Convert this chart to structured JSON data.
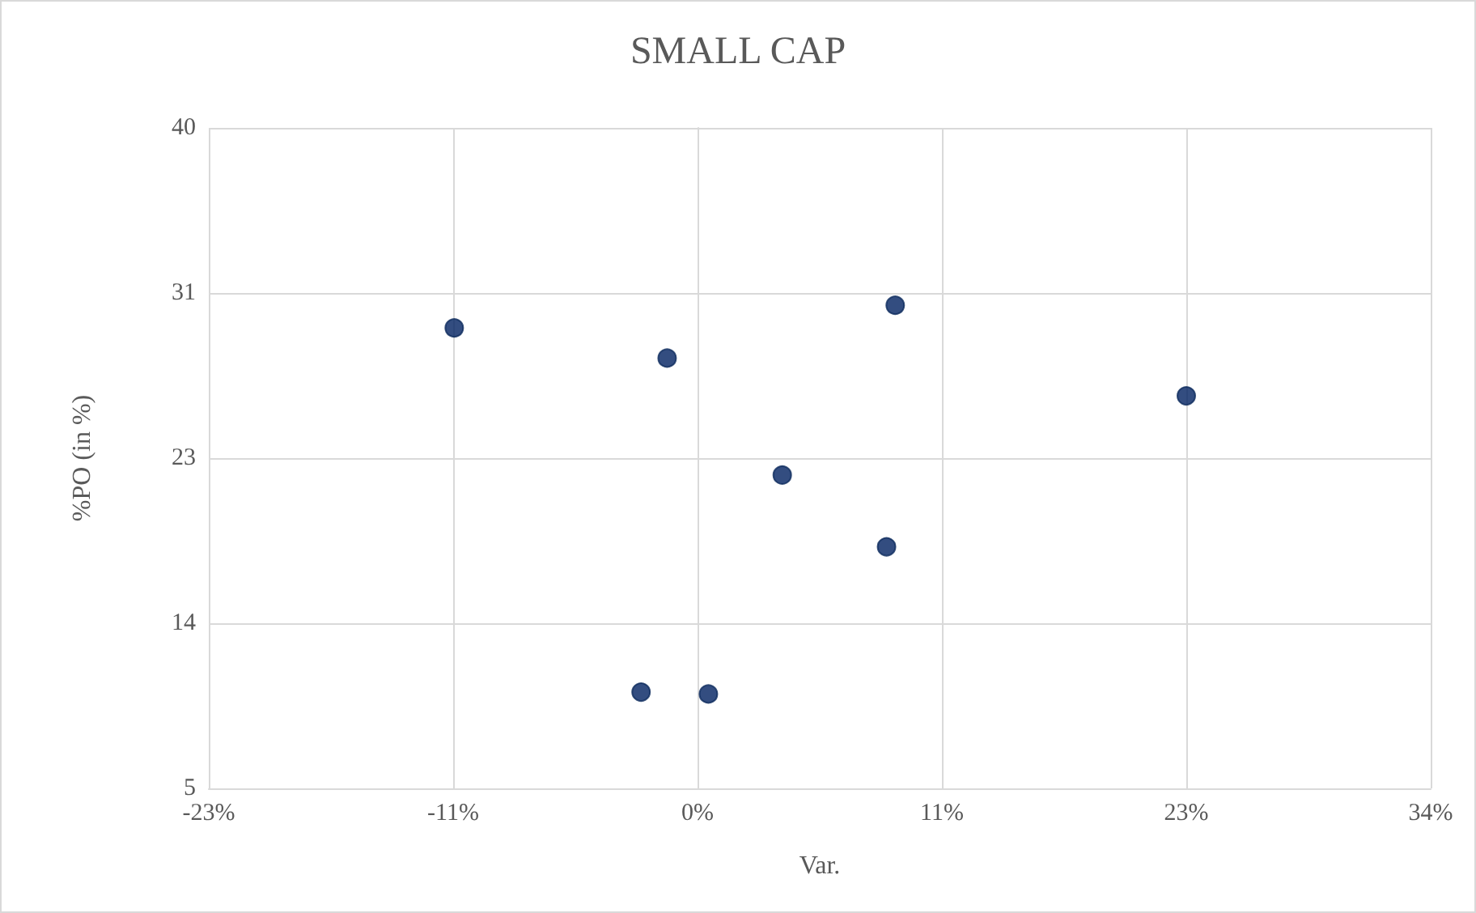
{
  "chart_data": {
    "type": "scatter",
    "title": "SMALL CAP",
    "xlabel": "Var.",
    "ylabel": "%PO (in %)",
    "x": [
      -11.2,
      -1.4,
      9.1,
      22.5,
      3.9,
      8.7,
      -2.6,
      0.5
    ],
    "series": [
      {
        "color": "#002060",
        "values": [
          29.4,
          27.8,
          30.6,
          25.8,
          21.6,
          17.8,
          10.1,
          10.0
        ]
      }
    ],
    "xlim": [
      -22.5,
      33.75
    ],
    "xticks": [
      {
        "value": -22.5,
        "label": "-23%"
      },
      {
        "value": -11.25,
        "label": "-11%"
      },
      {
        "value": 0,
        "label": "0%"
      },
      {
        "value": 11.25,
        "label": "11%"
      },
      {
        "value": 22.5,
        "label": "23%"
      },
      {
        "value": 33.75,
        "label": "34%"
      }
    ],
    "ylim": [
      5,
      40
    ],
    "yticks": [
      5,
      {
        "value": 13.75,
        "label": "14"
      },
      {
        "value": 22.5,
        "label": "23"
      },
      {
        "value": 31.25,
        "label": "31"
      },
      40
    ],
    "grid": true,
    "marker": "circle"
  }
}
